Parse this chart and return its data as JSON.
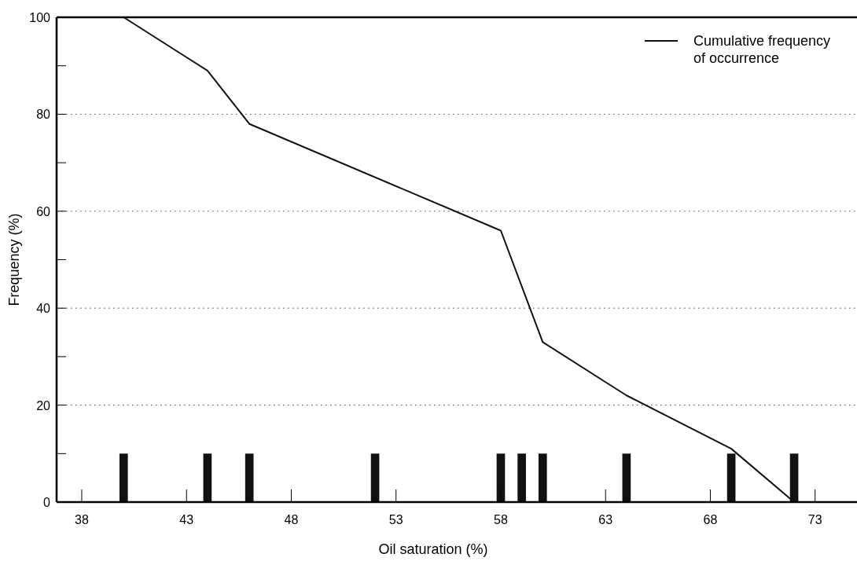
{
  "chart_data": {
    "type": "bar",
    "xlabel": "Oil saturation (%)",
    "ylabel": "Frequency (%)",
    "xlim": [
      36.8,
      75
    ],
    "xticks": [
      38,
      43,
      48,
      53,
      58,
      63,
      68,
      73
    ],
    "ylim": [
      0,
      100
    ],
    "yticks": [
      0,
      {
        "value": 10,
        "label": null
      },
      20,
      {
        "value": 30,
        "label": null
      },
      40,
      {
        "value": 50,
        "label": null
      },
      60,
      {
        "value": 70,
        "label": null
      },
      80,
      {
        "value": 90,
        "label": null
      },
      100
    ],
    "grid": "y",
    "legend": "top right",
    "marker": "none",
    "line_style": "solid",
    "series": [
      {
        "color": "#111111",
        "x": [
          40,
          44,
          46,
          52,
          58,
          59,
          60,
          64,
          69,
          72
        ],
        "values": [
          10,
          10,
          10,
          10,
          10,
          10,
          10,
          10,
          10,
          10
        ]
      },
      {
        "type": "line",
        "name": "Cumulative frequency\nof occurrence",
        "color": "#111111",
        "x": [
          40,
          44,
          46,
          58,
          60,
          64,
          69,
          72
        ],
        "values": [
          100,
          89,
          78,
          56,
          33,
          22,
          11,
          0
        ]
      }
    ]
  }
}
